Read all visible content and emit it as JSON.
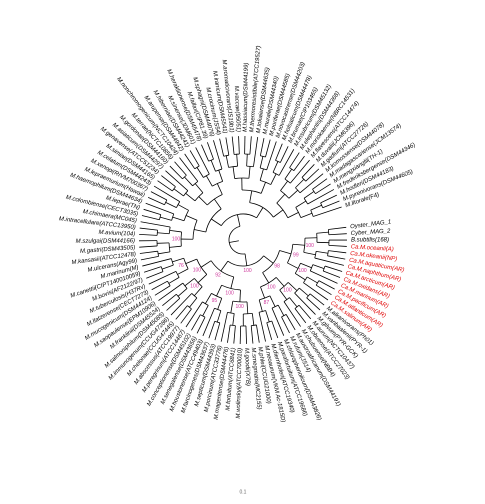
{
  "tree": {
    "groups": [
      {
        "color": "#000000",
        "leaves": [
          "Oyster_MAG_1",
          "Cyber_MAG_2",
          "B.subtilis(168)"
        ]
      },
      {
        "color": "#e00000",
        "leaves": [
          "Ca.M.oceanii(A)",
          "Ca.M.okeanii(NP)",
          "Ca.M.aquaticum(AR)",
          "Ca.M.naphthum(AR)",
          "Ca.M.arcticum(AR)",
          "Ca.M.oxidans(AR)",
          "Ca.M.marinum(AR)",
          "Ca.M.pacificum(AR)",
          "Ca.M.atlanticum(AR)",
          "Ca.M.salinum(AR)"
        ]
      },
      {
        "color": "#000000",
        "leaves": [
          "M.alkanivorans(Ph01)",
          "M.vanbaalenii(PYR-1)",
          "M.gilvum(PYR-GCK)",
          "M.aurum(NCTC10437)",
          "M.obuense(ATCC27023)",
          "M.chubuense(NBB4)",
          "M.austroafricanum(DSM44191)",
          "M.rufum(JS14)",
          "M.chlorophenolicum(DSM43826)",
          "M.parafortuitum(ATCC19686)",
          "M.diernhoferi(ATCC19340)",
          "M.neoaurum(VKM Ac-1815D)",
          "M.phlei(CCUG21000)",
          "M.smegmatis(MC2155)",
          "M.goodii(X7B)",
          "M.wolinskyi(ATCC700010)",
          "M.fortuitum(ATCC6841)",
          "M.mageritense(DSM44476)",
          "M.porcinum(ATCC33776)",
          "M.septicum(DSM44393)",
          "M.farcinogenes(DSM43637)",
          "M.houstonense(ATCC49403)",
          "M.senegalense(DSM43656)",
          "M.conceptionense(DSM45102)",
          "M.peregrinum(ATCC14467)",
          "M.abscessus(ATCC19977)",
          "M.chelonae(CCUG47445)",
          "M.immunogenum(CCUG47286)",
          "M.salmoniphilum(DSM45085)",
          "M.franklinii(DSM45524)",
          "M.saopaulense(EPM10906)",
          "M.mucogenicum(DSM44124)",
          "M.llatzerense(CECT7273)",
          "M.tuberculosis(H37Rv)",
          "M.bovis(AF2122/97)",
          "M.canettii(CIPT140010059)",
          "M.marinum(M)",
          "M.ulcerans(Agy99)",
          "M.kansasii(ATCC12478)",
          "M.gastri(DSM43505)",
          "M.szulgai(DSM44166)",
          "M.avium(104)",
          "M.intracellulare(ATCC13950)",
          "M.chimaera(MC045)",
          "M.colombiense(CECT3035)",
          "M.leprae(TN)",
          "M.haemophilum(DSM44634)",
          "M.lepraemurium(Hawaii)",
          "M.xenopi(RIVM700367)",
          "M.celatum(DSM44243)",
          "M.simiae(DSM44165)",
          "M.genavense(ATCC51234)",
          "M.asiaticum(DSM44297)",
          "M.gordonae(DSM44160)",
          "M.terrae(NCTC10856)",
          "M.nonchromogenicum(NCTC10424)",
          "M.arupense(DSM44942)",
          "M.hiberniae(DSM44241)",
          "M.sinense(JDM601)",
          "M.heraklionense(DSM45478)",
          "M.fallax(CIP81.39)",
          "M.sphagni(DSM44076)",
          "M.crocinum(JS54)",
          "M.iranicum(DSM45541)",
          "M.aromaticivorans(JS19b1)",
          "M.vaccae(95051)",
          "M.hassiacum(DSM44199)",
          "M.thermoresistibile(ATCC19527)",
          "M.tokaiense(DSM44635)",
          "M.murale(DSM44340)",
          "M.poriferae(DSM44585)",
          "M.novocastrense(DSM44203)",
          "M.holsaticum(DSM44478)",
          "M.brumae(CIP103465)",
          "M.insubricum(DSM45132)",
          "M.elephantis(DSM44368)",
          "M.moriokaense(NBRC14531)",
          "M.flavescens(ATCC14474)",
          "M.duvalii(JCM6396)",
          "M.gadium(ATCC27726)",
          "M.komossense(DSM44078)",
          "M.madagascariense(JCM13574)",
          "M.mengxianglii(TH-1)",
          "M.frederiksbergense(DSM44346)",
          "M.hodleri(DSM44183)",
          "M.pyrenivorans(DSM44605)",
          "M.litorale(F4)"
        ]
      }
    ],
    "bootstrap": {
      "color": "#cc3399",
      "values": [
        100,
        100,
        99,
        100,
        87,
        100,
        98,
        100,
        95,
        100,
        100,
        76,
        100,
        92,
        100,
        100
      ]
    },
    "scale_label": 0.1
  }
}
